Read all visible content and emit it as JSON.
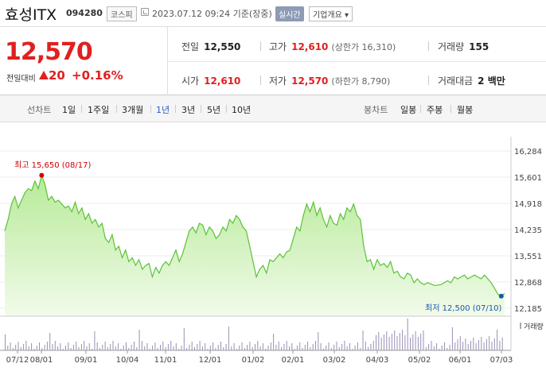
{
  "header": {
    "name": "효성ITX",
    "code": "094280",
    "market": "코스피",
    "datetime": "2023.07.12 09:24 기준(장중)",
    "realtime": "실시간",
    "company_info": "기업개요 ▾"
  },
  "price": {
    "current": "12,570",
    "change_label": "전일대비",
    "change_amount": "20",
    "change_percent": "+0.16%",
    "direction": "up",
    "color": "#e02020"
  },
  "stats": {
    "prev_close_label": "전일",
    "prev_close": "12,550",
    "high_label": "고가",
    "high": "12,610",
    "upper_limit": "(상한가 16,310)",
    "volume_label": "거래량",
    "volume": "155",
    "open_label": "시가",
    "open": "12,610",
    "low_label": "저가",
    "low": "12,570",
    "lower_limit": "(하한가 8,790)",
    "amount_label": "거래대금",
    "amount": "2 백만"
  },
  "toolbar": {
    "line_label": "선차트",
    "periods": [
      "1일",
      "1주일",
      "3개월",
      "1년",
      "3년",
      "5년",
      "10년"
    ],
    "active_period": "1년",
    "candle_label": "봉차트",
    "candles": [
      "일봉",
      "주봉",
      "월봉"
    ]
  },
  "chart_data": {
    "type": "area",
    "y_ticks": [
      "16,284",
      "15,601",
      "14,918",
      "14,235",
      "13,551",
      "12,868",
      "12,185"
    ],
    "ylim": [
      12185,
      16284
    ],
    "x_ticks": [
      "07/12",
      "08/01",
      "09/01",
      "10/04",
      "11/01",
      "12/01",
      "01/02",
      "02/01",
      "03/02",
      "04/03",
      "05/02",
      "06/01",
      "07/03"
    ],
    "max_annotation": "최고 15,650 (08/17)",
    "min_annotation": "최저 12,500 (07/10)",
    "volume_label": "거래량",
    "line_color": "#5cc23a",
    "fill_color": "#c8f0b0",
    "values": [
      14200,
      14500,
      14900,
      15100,
      14800,
      15000,
      15200,
      15300,
      15250,
      15500,
      15300,
      15650,
      15400,
      15000,
      15100,
      14950,
      15000,
      14900,
      14800,
      14850,
      14700,
      14950,
      14650,
      14800,
      14500,
      14650,
      14400,
      14500,
      14300,
      14400,
      14000,
      13900,
      14100,
      13700,
      13800,
      13500,
      13700,
      13400,
      13500,
      13300,
      13450,
      13200,
      13300,
      13350,
      13000,
      13250,
      13100,
      13300,
      13400,
      13300,
      13500,
      13700,
      13400,
      13600,
      13900,
      14200,
      14300,
      14150,
      14400,
      14350,
      14100,
      14300,
      14200,
      14000,
      14100,
      14300,
      14200,
      14500,
      14400,
      14600,
      14500,
      14300,
      14200,
      13800,
      13400,
      13000,
      13200,
      13300,
      13100,
      13450,
      13400,
      13500,
      13600,
      13500,
      13650,
      13700,
      14000,
      14300,
      14200,
      14600,
      14900,
      14700,
      14950,
      14600,
      14800,
      14500,
      14300,
      14600,
      14400,
      14350,
      14650,
      14500,
      14800,
      14700,
      14900,
      14600,
      14500,
      13800,
      13400,
      13450,
      13200,
      13450,
      13300,
      13350,
      13250,
      13400,
      13100,
      13150,
      13000,
      12950,
      13100,
      13050,
      12850,
      12950,
      12850,
      12800,
      12850,
      12820,
      12780,
      12790,
      12800,
      12850,
      12900,
      12850,
      13000,
      12950,
      13000,
      13050,
      12950,
      13000,
      13050,
      13000,
      12950,
      13050,
      12950,
      12850,
      12700,
      12550,
      12500,
      12570
    ]
  }
}
